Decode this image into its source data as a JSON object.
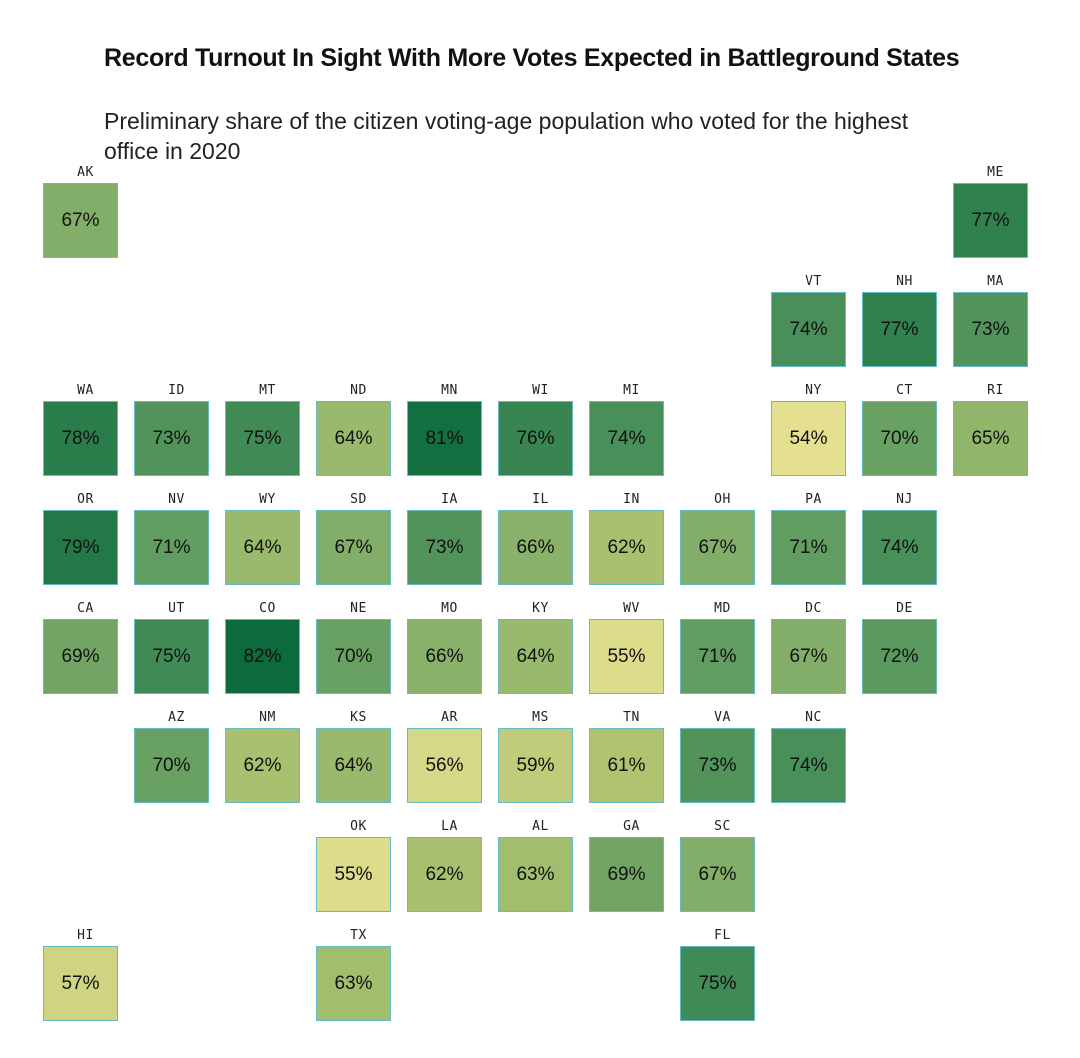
{
  "chart_data": {
    "type": "tile-map",
    "title": "Record Turnout In Sight With More Votes Expected in Battleground States",
    "subtitle": "Preliminary share of the citizen voting-age population who voted for the highest office in 2020",
    "value_unit": "%",
    "color_scale": {
      "low_value": 54,
      "high_value": 82,
      "low_color": "#e4e090",
      "high_color": "#0d6a3c"
    },
    "tiles": [
      {
        "state": "AK",
        "value": 67,
        "col": 0,
        "row": 0
      },
      {
        "state": "ME",
        "value": 77,
        "col": 10,
        "row": 0
      },
      {
        "state": "VT",
        "value": 74,
        "col": 8,
        "row": 1
      },
      {
        "state": "NH",
        "value": 77,
        "col": 9,
        "row": 1
      },
      {
        "state": "MA",
        "value": 73,
        "col": 10,
        "row": 1
      },
      {
        "state": "WA",
        "value": 78,
        "col": 0,
        "row": 2
      },
      {
        "state": "ID",
        "value": 73,
        "col": 1,
        "row": 2
      },
      {
        "state": "MT",
        "value": 75,
        "col": 2,
        "row": 2
      },
      {
        "state": "ND",
        "value": 64,
        "col": 3,
        "row": 2
      },
      {
        "state": "MN",
        "value": 81,
        "col": 4,
        "row": 2
      },
      {
        "state": "WI",
        "value": 76,
        "col": 5,
        "row": 2
      },
      {
        "state": "MI",
        "value": 74,
        "col": 6,
        "row": 2
      },
      {
        "state": "NY",
        "value": 54,
        "col": 8,
        "row": 2
      },
      {
        "state": "CT",
        "value": 70,
        "col": 9,
        "row": 2
      },
      {
        "state": "RI",
        "value": 65,
        "col": 10,
        "row": 2
      },
      {
        "state": "OR",
        "value": 79,
        "col": 0,
        "row": 3
      },
      {
        "state": "NV",
        "value": 71,
        "col": 1,
        "row": 3
      },
      {
        "state": "WY",
        "value": 64,
        "col": 2,
        "row": 3
      },
      {
        "state": "SD",
        "value": 67,
        "col": 3,
        "row": 3
      },
      {
        "state": "IA",
        "value": 73,
        "col": 4,
        "row": 3
      },
      {
        "state": "IL",
        "value": 66,
        "col": 5,
        "row": 3
      },
      {
        "state": "IN",
        "value": 62,
        "col": 6,
        "row": 3
      },
      {
        "state": "OH",
        "value": 67,
        "col": 7,
        "row": 3
      },
      {
        "state": "PA",
        "value": 71,
        "col": 8,
        "row": 3
      },
      {
        "state": "NJ",
        "value": 74,
        "col": 9,
        "row": 3
      },
      {
        "state": "CA",
        "value": 69,
        "col": 0,
        "row": 4
      },
      {
        "state": "UT",
        "value": 75,
        "col": 1,
        "row": 4
      },
      {
        "state": "CO",
        "value": 82,
        "col": 2,
        "row": 4
      },
      {
        "state": "NE",
        "value": 70,
        "col": 3,
        "row": 4
      },
      {
        "state": "MO",
        "value": 66,
        "col": 4,
        "row": 4
      },
      {
        "state": "KY",
        "value": 64,
        "col": 5,
        "row": 4
      },
      {
        "state": "WV",
        "value": 55,
        "col": 6,
        "row": 4
      },
      {
        "state": "MD",
        "value": 71,
        "col": 7,
        "row": 4
      },
      {
        "state": "DC",
        "value": 67,
        "col": 8,
        "row": 4
      },
      {
        "state": "DE",
        "value": 72,
        "col": 9,
        "row": 4
      },
      {
        "state": "AZ",
        "value": 70,
        "col": 1,
        "row": 5
      },
      {
        "state": "NM",
        "value": 62,
        "col": 2,
        "row": 5
      },
      {
        "state": "KS",
        "value": 64,
        "col": 3,
        "row": 5
      },
      {
        "state": "AR",
        "value": 56,
        "col": 4,
        "row": 5
      },
      {
        "state": "MS",
        "value": 59,
        "col": 5,
        "row": 5
      },
      {
        "state": "TN",
        "value": 61,
        "col": 6,
        "row": 5
      },
      {
        "state": "VA",
        "value": 73,
        "col": 7,
        "row": 5
      },
      {
        "state": "NC",
        "value": 74,
        "col": 8,
        "row": 5
      },
      {
        "state": "OK",
        "value": 55,
        "col": 3,
        "row": 6
      },
      {
        "state": "LA",
        "value": 62,
        "col": 4,
        "row": 6
      },
      {
        "state": "AL",
        "value": 63,
        "col": 5,
        "row": 6
      },
      {
        "state": "GA",
        "value": 69,
        "col": 6,
        "row": 6
      },
      {
        "state": "SC",
        "value": 67,
        "col": 7,
        "row": 6
      },
      {
        "state": "HI",
        "value": 57,
        "col": 0,
        "row": 7
      },
      {
        "state": "TX",
        "value": 63,
        "col": 3,
        "row": 7
      },
      {
        "state": "FL",
        "value": 75,
        "col": 7,
        "row": 7
      }
    ]
  }
}
